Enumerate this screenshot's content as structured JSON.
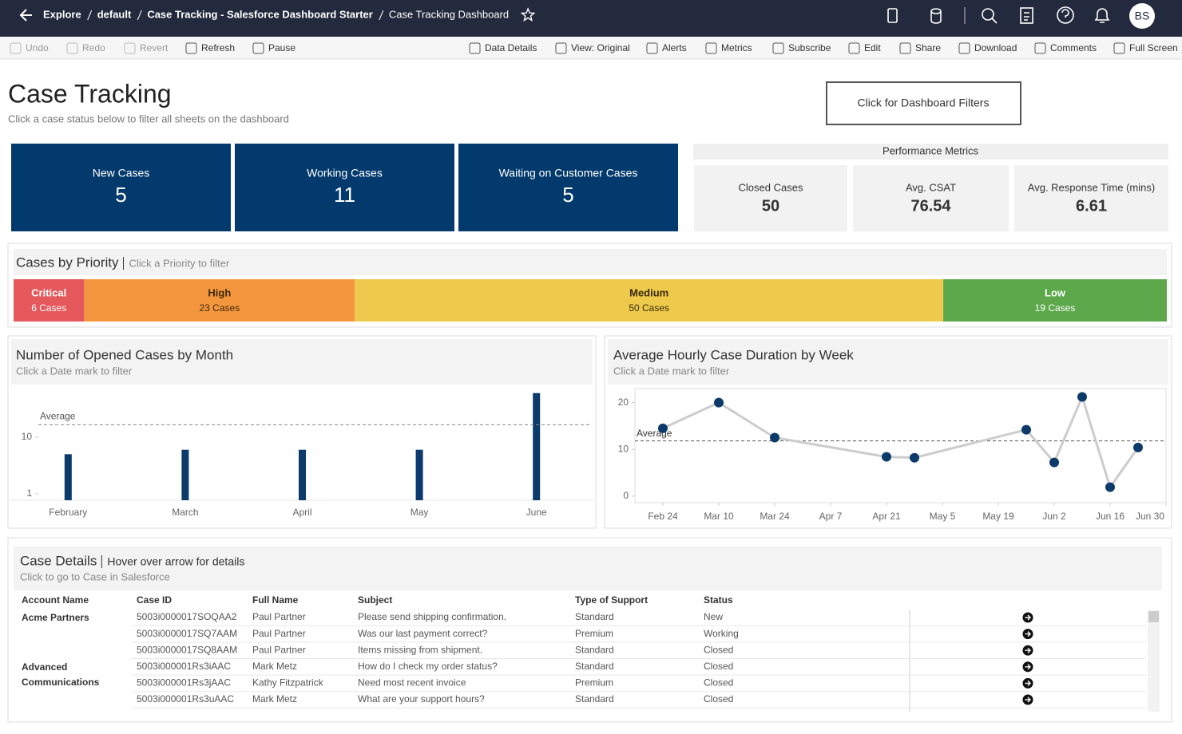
{
  "nav": {
    "breadcrumb": [
      "Explore",
      "default",
      "Case Tracking - Salesforce Dashboard Starter",
      "Case Tracking Dashboard"
    ],
    "avatar": "BS"
  },
  "toolbar": {
    "left": [
      "Undo",
      "Redo",
      "Revert",
      "Refresh",
      "Pause"
    ],
    "right": [
      "Data Details",
      "View: Original",
      "Alerts",
      "Metrics",
      "Subscribe",
      "Edit",
      "Share",
      "Download",
      "Comments",
      "Full Screen"
    ]
  },
  "header": {
    "title": "Case Tracking",
    "subtitle": "Click a case status below to filter all sheets on the dashboard",
    "filter_button": "Click for Dashboard Filters"
  },
  "status_tiles": [
    {
      "label": "New Cases",
      "value": 5
    },
    {
      "label": "Working Cases",
      "value": 11
    },
    {
      "label": "Waiting on Customer Cases",
      "value": 5
    }
  ],
  "performance": {
    "title": "Performance Metrics",
    "metrics": [
      {
        "label": "Closed Cases",
        "value": 50
      },
      {
        "label": "Avg. CSAT",
        "value": 76.54
      },
      {
        "label": "Avg. Response Time (mins)",
        "value": 6.61
      }
    ]
  },
  "chart_data": [
    {
      "type": "stacked-bar",
      "title": "Cases by Priority",
      "subtitle": "Click a Priority to filter",
      "categories": [
        "Critical",
        "High",
        "Medium",
        "Low"
      ],
      "values": [
        6,
        23,
        50,
        19
      ],
      "value_labels": [
        "6 Cases",
        "23 Cases",
        "50 Cases",
        "19 Cases"
      ],
      "colors": [
        "#e5585c",
        "#f4963e",
        "#edca4c",
        "#5da84b"
      ],
      "text_colors": [
        "#ffffff",
        "#3b2a0a",
        "#3b2a0a",
        "#ffffff"
      ]
    },
    {
      "type": "bar",
      "title": "Number of Opened Cases by Month",
      "subtitle": "Click a Date mark to filter",
      "categories": [
        "February",
        "March",
        "April",
        "May",
        "June"
      ],
      "values": [
        5,
        6,
        6,
        6,
        60
      ],
      "color": "#0b3a6b",
      "log_scale": true,
      "ylim": [
        0.77,
        77
      ],
      "yticks": [
        1,
        10
      ],
      "reference_line": {
        "value": 16.6,
        "label": "Average"
      }
    },
    {
      "type": "line",
      "title": "Average Hourly Case Duration by Week",
      "subtitle": "Click a Date mark to filter",
      "x": [
        "Feb 24",
        "Mar 10",
        "Mar 24",
        "Apr 21",
        "Apr 28",
        "May 26",
        "Jun 2",
        "Jun 9",
        "Jun 16",
        "Jun 23"
      ],
      "values": [
        14.5,
        20,
        12.5,
        8.4,
        8.2,
        14.2,
        7.2,
        21.2,
        1.9,
        10.4
      ],
      "color": "#0b3a6b",
      "line_color": "#cccccc",
      "xlim": [
        "Feb 17",
        "Jun 30"
      ],
      "xticks": [
        "Feb 24",
        "Mar 10",
        "Mar 24",
        "Apr 7",
        "Apr 21",
        "May 5",
        "May 19",
        "Jun 2",
        "Jun 16",
        "Jun 30"
      ],
      "ylim": [
        -1.4,
        23
      ],
      "yticks": [
        0,
        10,
        20
      ],
      "reference_line": {
        "value": 11.8,
        "label": "Average"
      }
    }
  ],
  "case_details": {
    "title": "Case Details",
    "hint": "Hover over arrow for details",
    "subtitle": "Click to go to Case in Salesforce",
    "columns": [
      "Account Name",
      "Case ID",
      "Full Name",
      "Subject",
      "Type of Support",
      "Status"
    ],
    "groups": [
      {
        "account": "Acme Partners",
        "rows": [
          [
            "5003i0000017SOQAA2",
            "Paul Partner",
            "Please send shipping confirmation.",
            "Standard",
            "New"
          ],
          [
            "5003i0000017SQ7AAM",
            "Paul Partner",
            "Was our last payment correct?",
            "Premium",
            "Working"
          ],
          [
            "5003i0000017SQ8AAM",
            "Paul Partner",
            "Items missing from shipment.",
            "Standard",
            "Closed"
          ]
        ]
      },
      {
        "account": "Advanced Communications",
        "rows": [
          [
            "5003i000001Rs3iAAC",
            "Mark Metz",
            "How do I check my order status?",
            "Standard",
            "Closed"
          ],
          [
            "5003i000001Rs3jAAC",
            "Kathy Fitzpatrick",
            "Need most recent invoice",
            "Premium",
            "Closed"
          ],
          [
            "5003i000001Rs3uAAC",
            "Mark Metz",
            "What are your support hours?",
            "Standard",
            "Closed"
          ]
        ]
      }
    ]
  }
}
